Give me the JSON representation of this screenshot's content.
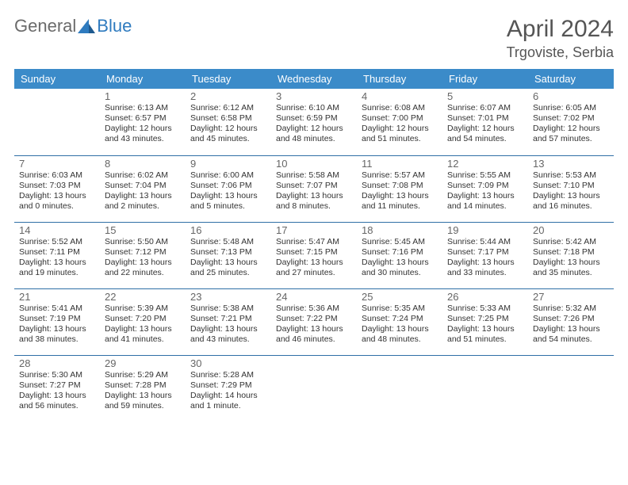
{
  "logo": {
    "text1": "General",
    "text2": "Blue"
  },
  "title": "April 2024",
  "location": "Trgoviste, Serbia",
  "colors": {
    "header_bg": "#3b8bc9",
    "header_text": "#ffffff",
    "row_border": "#2f6fa6",
    "daynum": "#666666",
    "body_text": "#333333",
    "logo_gray": "#6b6b6b",
    "logo_blue": "#2f7bbf"
  },
  "weekdays": [
    "Sunday",
    "Monday",
    "Tuesday",
    "Wednesday",
    "Thursday",
    "Friday",
    "Saturday"
  ],
  "weeks": [
    [
      null,
      {
        "d": "1",
        "sr": "Sunrise: 6:13 AM",
        "ss": "Sunset: 6:57 PM",
        "dl1": "Daylight: 12 hours",
        "dl2": "and 43 minutes."
      },
      {
        "d": "2",
        "sr": "Sunrise: 6:12 AM",
        "ss": "Sunset: 6:58 PM",
        "dl1": "Daylight: 12 hours",
        "dl2": "and 45 minutes."
      },
      {
        "d": "3",
        "sr": "Sunrise: 6:10 AM",
        "ss": "Sunset: 6:59 PM",
        "dl1": "Daylight: 12 hours",
        "dl2": "and 48 minutes."
      },
      {
        "d": "4",
        "sr": "Sunrise: 6:08 AM",
        "ss": "Sunset: 7:00 PM",
        "dl1": "Daylight: 12 hours",
        "dl2": "and 51 minutes."
      },
      {
        "d": "5",
        "sr": "Sunrise: 6:07 AM",
        "ss": "Sunset: 7:01 PM",
        "dl1": "Daylight: 12 hours",
        "dl2": "and 54 minutes."
      },
      {
        "d": "6",
        "sr": "Sunrise: 6:05 AM",
        "ss": "Sunset: 7:02 PM",
        "dl1": "Daylight: 12 hours",
        "dl2": "and 57 minutes."
      }
    ],
    [
      {
        "d": "7",
        "sr": "Sunrise: 6:03 AM",
        "ss": "Sunset: 7:03 PM",
        "dl1": "Daylight: 13 hours",
        "dl2": "and 0 minutes."
      },
      {
        "d": "8",
        "sr": "Sunrise: 6:02 AM",
        "ss": "Sunset: 7:04 PM",
        "dl1": "Daylight: 13 hours",
        "dl2": "and 2 minutes."
      },
      {
        "d": "9",
        "sr": "Sunrise: 6:00 AM",
        "ss": "Sunset: 7:06 PM",
        "dl1": "Daylight: 13 hours",
        "dl2": "and 5 minutes."
      },
      {
        "d": "10",
        "sr": "Sunrise: 5:58 AM",
        "ss": "Sunset: 7:07 PM",
        "dl1": "Daylight: 13 hours",
        "dl2": "and 8 minutes."
      },
      {
        "d": "11",
        "sr": "Sunrise: 5:57 AM",
        "ss": "Sunset: 7:08 PM",
        "dl1": "Daylight: 13 hours",
        "dl2": "and 11 minutes."
      },
      {
        "d": "12",
        "sr": "Sunrise: 5:55 AM",
        "ss": "Sunset: 7:09 PM",
        "dl1": "Daylight: 13 hours",
        "dl2": "and 14 minutes."
      },
      {
        "d": "13",
        "sr": "Sunrise: 5:53 AM",
        "ss": "Sunset: 7:10 PM",
        "dl1": "Daylight: 13 hours",
        "dl2": "and 16 minutes."
      }
    ],
    [
      {
        "d": "14",
        "sr": "Sunrise: 5:52 AM",
        "ss": "Sunset: 7:11 PM",
        "dl1": "Daylight: 13 hours",
        "dl2": "and 19 minutes."
      },
      {
        "d": "15",
        "sr": "Sunrise: 5:50 AM",
        "ss": "Sunset: 7:12 PM",
        "dl1": "Daylight: 13 hours",
        "dl2": "and 22 minutes."
      },
      {
        "d": "16",
        "sr": "Sunrise: 5:48 AM",
        "ss": "Sunset: 7:13 PM",
        "dl1": "Daylight: 13 hours",
        "dl2": "and 25 minutes."
      },
      {
        "d": "17",
        "sr": "Sunrise: 5:47 AM",
        "ss": "Sunset: 7:15 PM",
        "dl1": "Daylight: 13 hours",
        "dl2": "and 27 minutes."
      },
      {
        "d": "18",
        "sr": "Sunrise: 5:45 AM",
        "ss": "Sunset: 7:16 PM",
        "dl1": "Daylight: 13 hours",
        "dl2": "and 30 minutes."
      },
      {
        "d": "19",
        "sr": "Sunrise: 5:44 AM",
        "ss": "Sunset: 7:17 PM",
        "dl1": "Daylight: 13 hours",
        "dl2": "and 33 minutes."
      },
      {
        "d": "20",
        "sr": "Sunrise: 5:42 AM",
        "ss": "Sunset: 7:18 PM",
        "dl1": "Daylight: 13 hours",
        "dl2": "and 35 minutes."
      }
    ],
    [
      {
        "d": "21",
        "sr": "Sunrise: 5:41 AM",
        "ss": "Sunset: 7:19 PM",
        "dl1": "Daylight: 13 hours",
        "dl2": "and 38 minutes."
      },
      {
        "d": "22",
        "sr": "Sunrise: 5:39 AM",
        "ss": "Sunset: 7:20 PM",
        "dl1": "Daylight: 13 hours",
        "dl2": "and 41 minutes."
      },
      {
        "d": "23",
        "sr": "Sunrise: 5:38 AM",
        "ss": "Sunset: 7:21 PM",
        "dl1": "Daylight: 13 hours",
        "dl2": "and 43 minutes."
      },
      {
        "d": "24",
        "sr": "Sunrise: 5:36 AM",
        "ss": "Sunset: 7:22 PM",
        "dl1": "Daylight: 13 hours",
        "dl2": "and 46 minutes."
      },
      {
        "d": "25",
        "sr": "Sunrise: 5:35 AM",
        "ss": "Sunset: 7:24 PM",
        "dl1": "Daylight: 13 hours",
        "dl2": "and 48 minutes."
      },
      {
        "d": "26",
        "sr": "Sunrise: 5:33 AM",
        "ss": "Sunset: 7:25 PM",
        "dl1": "Daylight: 13 hours",
        "dl2": "and 51 minutes."
      },
      {
        "d": "27",
        "sr": "Sunrise: 5:32 AM",
        "ss": "Sunset: 7:26 PM",
        "dl1": "Daylight: 13 hours",
        "dl2": "and 54 minutes."
      }
    ],
    [
      {
        "d": "28",
        "sr": "Sunrise: 5:30 AM",
        "ss": "Sunset: 7:27 PM",
        "dl1": "Daylight: 13 hours",
        "dl2": "and 56 minutes."
      },
      {
        "d": "29",
        "sr": "Sunrise: 5:29 AM",
        "ss": "Sunset: 7:28 PM",
        "dl1": "Daylight: 13 hours",
        "dl2": "and 59 minutes."
      },
      {
        "d": "30",
        "sr": "Sunrise: 5:28 AM",
        "ss": "Sunset: 7:29 PM",
        "dl1": "Daylight: 14 hours",
        "dl2": "and 1 minute."
      },
      null,
      null,
      null,
      null
    ]
  ]
}
